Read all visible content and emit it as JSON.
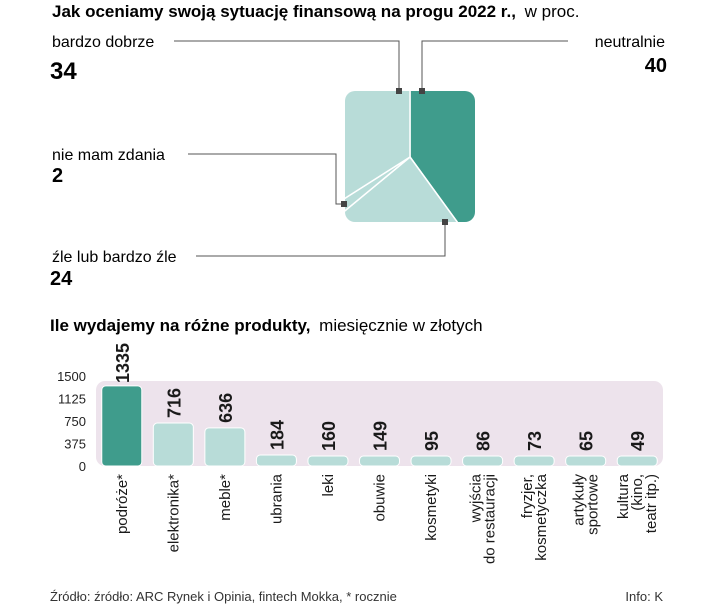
{
  "colors": {
    "dark": "#3f9c8c",
    "light": "#b8dcd8",
    "bar_bg": "#ede3ec",
    "line": "#555555",
    "marker": "#444444"
  },
  "chart_data": [
    {
      "type": "pie",
      "title": "Jak oceniamy swoją sytuację finansową na progu 2022 r.,",
      "subtitle": "w proc.",
      "slices": [
        {
          "label": "neutralnie",
          "value": 40,
          "color": "dark"
        },
        {
          "label": "źle lub bardzo źle",
          "value": 24,
          "color": "light"
        },
        {
          "label": "nie mam zdania",
          "value": 2,
          "color": "light"
        },
        {
          "label": "bardzo dobrze",
          "value": 34,
          "color": "light"
        }
      ]
    },
    {
      "type": "bar",
      "title": "Ile wydajemy na różne produkty,",
      "subtitle": "miesięcznie w złotych",
      "categories": [
        "podróże*",
        "elektronika*",
        "meble*",
        "ubrania",
        "leki",
        "obuwie",
        "kosmetyki",
        "wyjścia do restauracji",
        "fryzjer, kosmetyczka",
        "artykuły sportowe",
        "kultura (kino, teatr itp.)"
      ],
      "category_lines": [
        [
          "podróże*"
        ],
        [
          "elektronika*"
        ],
        [
          "meble*"
        ],
        [
          "ubrania"
        ],
        [
          "leki"
        ],
        [
          "obuwie"
        ],
        [
          "kosmetyki"
        ],
        [
          "wyjścia",
          "do restauracji"
        ],
        [
          "fryzjer,",
          "kosmetyczka"
        ],
        [
          "artykuły",
          "sportowe"
        ],
        [
          "kultura",
          "(kino,",
          "teatr itp.)"
        ]
      ],
      "values": [
        1335,
        716,
        636,
        184,
        160,
        149,
        95,
        86,
        73,
        65,
        49
      ],
      "yticks": [
        0,
        375,
        750,
        1125,
        1500
      ],
      "ylim": [
        0,
        1500
      ]
    }
  ],
  "footer": {
    "source": "Źródło: źródło: ARC Rynek i Opinia, fintech Mokka, * rocznie",
    "info": "Info: K"
  }
}
